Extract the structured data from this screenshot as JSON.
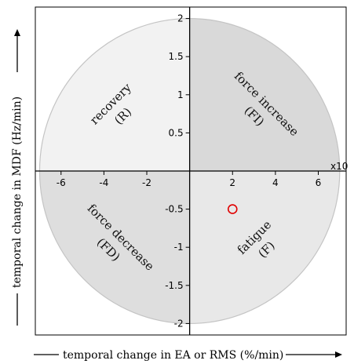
{
  "chart_data": {
    "type": "scatter",
    "title": "",
    "xlabel": "temporal change in EA or RMS (%/min)",
    "ylabel": "temporal change in MDF (Hz/min)",
    "x_multiplier_label": "x10",
    "xlim": [
      -7.2,
      7.3
    ],
    "ylim": [
      -2.15,
      2.15
    ],
    "x_ticks": [
      -6,
      -4,
      -2,
      2,
      4,
      6
    ],
    "x_tick_labels": [
      "-6",
      "-4",
      "-2",
      "2",
      "4",
      "6"
    ],
    "y_ticks": [
      2,
      1.5,
      1,
      0.5,
      -0.5,
      -1,
      -1.5,
      -2
    ],
    "y_tick_labels": [
      "2",
      "1.5",
      "1",
      "0.5",
      "-0.5",
      "-1",
      "-1.5",
      "-2"
    ],
    "grid": false,
    "circle": {
      "rx": 7,
      "ry": 2
    },
    "quadrants": [
      {
        "id": "recovery",
        "lines": [
          "recovery",
          "(R)"
        ],
        "color": "#f2f2f2"
      },
      {
        "id": "force-increase",
        "lines": [
          "force increase",
          "(FI)"
        ],
        "color": "#d9d9d9"
      },
      {
        "id": "force-decrease",
        "lines": [
          "force decrease",
          "(FD)"
        ],
        "color": "#dedede"
      },
      {
        "id": "fatigue",
        "lines": [
          "fatigue",
          "(F)"
        ],
        "color": "#e8e8e8"
      }
    ],
    "points": [
      {
        "x": 2,
        "y": -0.5,
        "color": "#e00000"
      }
    ]
  }
}
